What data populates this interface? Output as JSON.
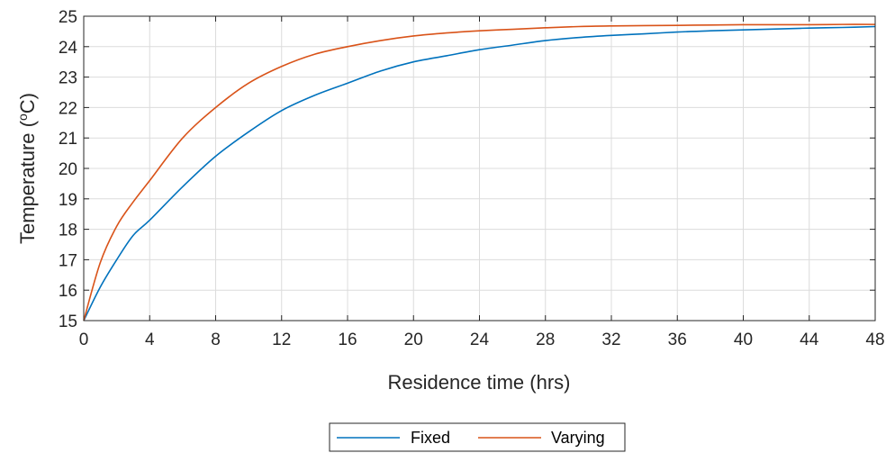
{
  "chart_data": {
    "type": "line",
    "xlabel": "Residence time (hrs)",
    "ylabel_prefix": "Temperature (",
    "ylabel_sup": "o",
    "ylabel_suffix": "C)",
    "xlim": [
      0,
      48
    ],
    "ylim": [
      15,
      25
    ],
    "xticks": [
      0,
      4,
      8,
      12,
      16,
      20,
      24,
      28,
      32,
      36,
      40,
      44,
      48
    ],
    "yticks": [
      15,
      16,
      17,
      18,
      19,
      20,
      21,
      22,
      23,
      24,
      25
    ],
    "grid": true,
    "legend_position": "bottom-center",
    "x": [
      0,
      1,
      2,
      3,
      4,
      6,
      8,
      10,
      12,
      14,
      16,
      18,
      20,
      22,
      24,
      26,
      28,
      30,
      32,
      34,
      36,
      38,
      40,
      42,
      44,
      46,
      48
    ],
    "series": [
      {
        "name": "Fixed",
        "color": "#0072BD",
        "values": [
          15.0,
          16.1,
          17.0,
          17.8,
          18.3,
          19.4,
          20.4,
          21.2,
          21.9,
          22.4,
          22.8,
          23.2,
          23.5,
          23.7,
          23.9,
          24.05,
          24.2,
          24.3,
          24.37,
          24.42,
          24.48,
          24.52,
          24.55,
          24.58,
          24.61,
          24.63,
          24.66
        ]
      },
      {
        "name": "Varying",
        "color": "#D95319",
        "values": [
          15.0,
          16.9,
          18.1,
          18.9,
          19.6,
          21.0,
          22.0,
          22.8,
          23.35,
          23.75,
          24.0,
          24.2,
          24.35,
          24.45,
          24.52,
          24.57,
          24.62,
          24.66,
          24.68,
          24.69,
          24.7,
          24.71,
          24.72,
          24.72,
          24.72,
          24.73,
          24.73
        ]
      }
    ]
  }
}
